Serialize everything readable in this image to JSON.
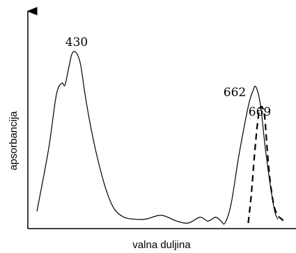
{
  "chart_data": {
    "type": "line",
    "title": "",
    "xlabel": "valna duljina",
    "ylabel": "apsorbancija",
    "x_ticks": [],
    "y_ticks": [],
    "grid": false,
    "legend": "none",
    "annotations": [
      {
        "text": "430",
        "peak_x": 430
      },
      {
        "text": "662",
        "peak_x": 662
      },
      {
        "text": "669",
        "peak_x": 669
      }
    ],
    "series": [
      {
        "style": "solid",
        "x": [
          380,
          395,
          405,
          412,
          416,
          421,
          425,
          430,
          436,
          442,
          450,
          460,
          470,
          480,
          492,
          505,
          520,
          540,
          560,
          575,
          590,
          600,
          610,
          617,
          622,
          630,
          640,
          652,
          658,
          662,
          668,
          675,
          685,
          690
        ],
        "y": [
          0.06,
          0.38,
          0.66,
          0.72,
          0.71,
          0.8,
          0.87,
          0.88,
          0.82,
          0.66,
          0.48,
          0.3,
          0.16,
          0.07,
          0.03,
          0.02,
          0.02,
          0.04,
          0.01,
          0.0,
          0.03,
          0.01,
          0.03,
          0.01,
          0.0,
          0.1,
          0.35,
          0.6,
          0.68,
          0.7,
          0.6,
          0.35,
          0.08,
          0.02
        ]
      },
      {
        "style": "dashed",
        "x": [
          652,
          656,
          660,
          665,
          669,
          673,
          676,
          680,
          685,
          690,
          695,
          700
        ],
        "y": [
          0.0,
          0.15,
          0.35,
          0.55,
          0.6,
          0.55,
          0.4,
          0.22,
          0.09,
          0.04,
          0.02,
          0.0
        ]
      }
    ]
  }
}
